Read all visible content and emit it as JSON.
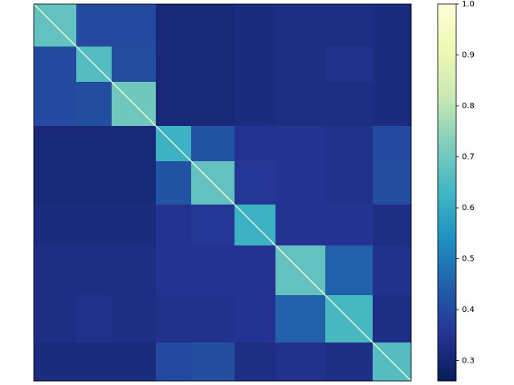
{
  "chart_data": {
    "type": "heatmap",
    "block_sizes": [
      53,
      44,
      55,
      44,
      54,
      51,
      62,
      59,
      48
    ],
    "values": [
      [
        0.68,
        0.4,
        0.4,
        0.31,
        0.31,
        0.32,
        0.33,
        0.33,
        0.32
      ],
      [
        0.4,
        0.66,
        0.41,
        0.31,
        0.31,
        0.32,
        0.33,
        0.34,
        0.32
      ],
      [
        0.4,
        0.41,
        0.7,
        0.31,
        0.31,
        0.32,
        0.33,
        0.33,
        0.32
      ],
      [
        0.31,
        0.31,
        0.31,
        0.62,
        0.42,
        0.35,
        0.35,
        0.34,
        0.4
      ],
      [
        0.31,
        0.31,
        0.31,
        0.42,
        0.68,
        0.36,
        0.35,
        0.34,
        0.41
      ],
      [
        0.32,
        0.32,
        0.32,
        0.35,
        0.36,
        0.62,
        0.35,
        0.35,
        0.33
      ],
      [
        0.33,
        0.33,
        0.33,
        0.35,
        0.35,
        0.35,
        0.68,
        0.45,
        0.34
      ],
      [
        0.33,
        0.34,
        0.33,
        0.34,
        0.34,
        0.35,
        0.45,
        0.64,
        0.33
      ],
      [
        0.32,
        0.32,
        0.32,
        0.4,
        0.41,
        0.33,
        0.34,
        0.33,
        0.66
      ]
    ],
    "diagonal_value": 1.0,
    "clim": [
      0.26,
      1.0
    ],
    "cticks": [
      {
        "value": 0.3,
        "label": "0.3"
      },
      {
        "value": 0.4,
        "label": "0.4"
      },
      {
        "value": 0.5,
        "label": "0.5"
      },
      {
        "value": 0.6,
        "label": "0.6"
      },
      {
        "value": 0.7,
        "label": "0.7"
      },
      {
        "value": 0.8,
        "label": "0.8"
      },
      {
        "value": 0.9,
        "label": "0.9"
      },
      {
        "value": 1.0,
        "label": "1.0"
      }
    ],
    "colormap": [
      "#081d58",
      "#253494",
      "#225ea8",
      "#1d91c0",
      "#41b6c4",
      "#7fcdbb",
      "#c7e9b4",
      "#edf8b1",
      "#ffffd9"
    ]
  }
}
